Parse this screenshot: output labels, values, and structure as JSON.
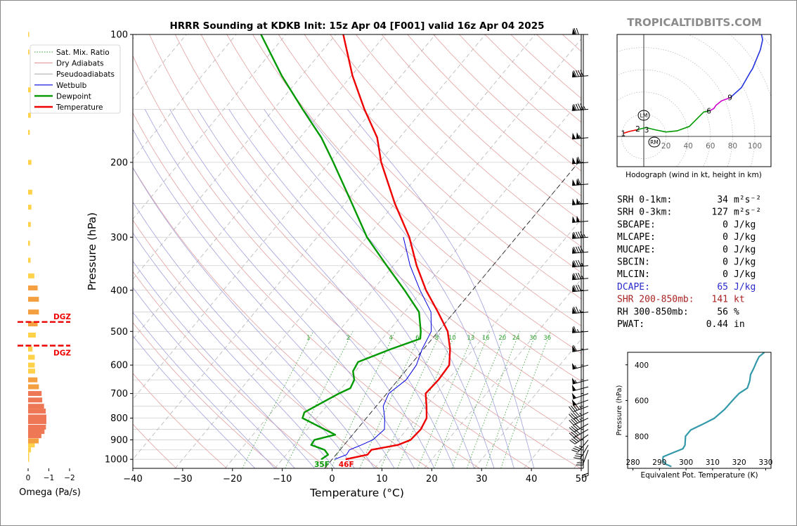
{
  "chart_data": {
    "type": "line",
    "title": "HRRR Sounding at KDKB Init: 15z Apr 04 [F001] valid 16z Apr 04 2025",
    "watermark": "TROPICALTIDBITS.COM",
    "skewt": {
      "xlabel": "Temperature (°C)",
      "ylabel": "Pressure (hPa)",
      "xlim": [
        -40,
        50
      ],
      "ylim": [
        1050,
        100
      ],
      "xticks": [
        "−40",
        "−30",
        "−20",
        "−10",
        "0",
        "10",
        "20",
        "30",
        "40",
        "50"
      ],
      "yticks": [
        "100",
        "200",
        "300",
        "400",
        "500",
        "600",
        "700",
        "800",
        "900",
        "1000"
      ],
      "legend_position": "upper-left",
      "legend": [
        {
          "label": "Sat. Mix. Ratio",
          "color": "#2ca02c",
          "style": "dotted"
        },
        {
          "label": "Dry Adiabats",
          "color": "#e08080",
          "style": "solid"
        },
        {
          "label": "Pseudoadiabats",
          "color": "#999999",
          "style": "solid"
        },
        {
          "label": "Wetbulb",
          "color": "#0000dd",
          "style": "solid"
        },
        {
          "label": "Dewpoint",
          "color": "#009900",
          "style": "solid"
        },
        {
          "label": "Temperature",
          "color": "#ee0000",
          "style": "solid"
        }
      ],
      "mixing_ratio_labels": [
        "1",
        "2",
        "4",
        "6",
        "8",
        "10",
        "13",
        "16",
        "20",
        "24",
        "30",
        "36"
      ],
      "surface_dewpoint_label": "35F",
      "surface_temp_label": "46F",
      "temperature": [
        [
          1000,
          2.7
        ],
        [
          975,
          6.3
        ],
        [
          950,
          6.3
        ],
        [
          925,
          10.8
        ],
        [
          900,
          12.5
        ],
        [
          850,
          12.8
        ],
        [
          800,
          12.1
        ],
        [
          750,
          10.1
        ],
        [
          700,
          7.8
        ],
        [
          650,
          8.1
        ],
        [
          600,
          7.8
        ],
        [
          550,
          5.3
        ],
        [
          500,
          1.9
        ],
        [
          450,
          -3.3
        ],
        [
          400,
          -9.3
        ],
        [
          350,
          -15.3
        ],
        [
          300,
          -21.5
        ],
        [
          250,
          -30
        ],
        [
          200,
          -39.6
        ],
        [
          175,
          -44.5
        ],
        [
          150,
          -51.8
        ],
        [
          125,
          -59.8
        ],
        [
          100,
          -68.5
        ]
      ],
      "dewpoint": [
        [
          1000,
          -2.2
        ],
        [
          975,
          -1.6
        ],
        [
          950,
          -3.1
        ],
        [
          925,
          -6.6
        ],
        [
          900,
          -6.8
        ],
        [
          875,
          -3.5
        ],
        [
          850,
          -6.5
        ],
        [
          800,
          -12.8
        ],
        [
          775,
          -13.4
        ],
        [
          700,
          -9.6
        ],
        [
          680,
          -8.2
        ],
        [
          650,
          -8.8
        ],
        [
          620,
          -10.5
        ],
        [
          590,
          -11
        ],
        [
          550,
          -6.5
        ],
        [
          520,
          -2.4
        ],
        [
          500,
          -3.5
        ],
        [
          450,
          -7.1
        ],
        [
          400,
          -13.6
        ],
        [
          350,
          -21.3
        ],
        [
          300,
          -30
        ],
        [
          250,
          -38.6
        ],
        [
          200,
          -49.2
        ],
        [
          175,
          -55.7
        ],
        [
          150,
          -64.2
        ],
        [
          125,
          -74
        ],
        [
          100,
          -85
        ]
      ],
      "wetbulb": [
        [
          1000,
          0.5
        ],
        [
          975,
          2.1
        ],
        [
          950,
          1.9
        ],
        [
          925,
          3.5
        ],
        [
          900,
          4.9
        ],
        [
          850,
          5.5
        ],
        [
          800,
          3.7
        ],
        [
          750,
          1.4
        ],
        [
          700,
          0.4
        ],
        [
          650,
          1.6
        ],
        [
          600,
          1.2
        ],
        [
          550,
          -0.3
        ],
        [
          500,
          -1.4
        ],
        [
          450,
          -4.7
        ],
        [
          400,
          -10.5
        ],
        [
          350,
          -16.6
        ],
        [
          300,
          -22.7
        ]
      ]
    },
    "omega": {
      "xlabel": "Omega (Pa/s)",
      "xticks": [
        "0",
        "−1",
        "−2"
      ],
      "dgz_label": "DGZ",
      "dgz_hpa": [
        475,
        540
      ],
      "values": [
        [
          1000,
          -0.02
        ],
        [
          975,
          -0.03
        ],
        [
          950,
          -0.14
        ],
        [
          925,
          -0.32
        ],
        [
          905,
          -0.51
        ],
        [
          880,
          -0.64
        ],
        [
          860,
          -0.79
        ],
        [
          840,
          -0.86
        ],
        [
          815,
          -0.88
        ],
        [
          795,
          -0.88
        ],
        [
          770,
          -0.85
        ],
        [
          750,
          -0.77
        ],
        [
          725,
          -0.68
        ],
        [
          700,
          -0.65
        ],
        [
          675,
          -0.52
        ],
        [
          650,
          -0.45
        ],
        [
          620,
          -0.34
        ],
        [
          600,
          -0.32
        ],
        [
          575,
          -0.32
        ],
        [
          550,
          -0.21
        ],
        [
          510,
          -0.37
        ],
        [
          480,
          -0.46
        ],
        [
          450,
          -0.52
        ],
        [
          420,
          -0.52
        ],
        [
          395,
          -0.46
        ],
        [
          370,
          -0.3
        ],
        [
          340,
          -0.12
        ],
        [
          310,
          -0.09
        ],
        [
          280,
          -0.13
        ],
        [
          255,
          -0.16
        ],
        [
          235,
          -0.2
        ],
        [
          200,
          -0.16
        ],
        [
          170,
          -0.08
        ],
        [
          155,
          -0.13
        ],
        [
          135,
          -0.13
        ],
        [
          110,
          -0.06
        ],
        [
          100,
          -0.04
        ]
      ]
    },
    "winds": [
      [
        1000,
        180,
        20
      ],
      [
        950,
        200,
        25
      ],
      [
        925,
        210,
        30
      ],
      [
        900,
        220,
        35
      ],
      [
        875,
        235,
        40
      ],
      [
        850,
        240,
        40
      ],
      [
        825,
        240,
        40
      ],
      [
        800,
        245,
        45
      ],
      [
        775,
        245,
        45
      ],
      [
        750,
        250,
        45
      ],
      [
        725,
        250,
        50
      ],
      [
        700,
        250,
        50
      ],
      [
        675,
        255,
        50
      ],
      [
        650,
        255,
        55
      ],
      [
        600,
        255,
        55
      ],
      [
        550,
        260,
        60
      ],
      [
        500,
        265,
        65
      ],
      [
        450,
        265,
        75
      ],
      [
        400,
        265,
        80
      ],
      [
        375,
        265,
        85
      ],
      [
        350,
        265,
        85
      ],
      [
        325,
        265,
        90
      ],
      [
        300,
        265,
        95
      ],
      [
        275,
        265,
        100
      ],
      [
        250,
        265,
        105
      ],
      [
        225,
        265,
        110
      ],
      [
        200,
        265,
        110
      ],
      [
        175,
        265,
        105
      ],
      [
        150,
        265,
        95
      ],
      [
        125,
        265,
        90
      ],
      [
        100,
        270,
        70
      ]
    ],
    "hodograph": {
      "caption": "Hodograph (wind in kt, height in km)",
      "ticks": [
        "20",
        "40",
        "60",
        "80",
        "100"
      ],
      "markers": [
        "1",
        "2",
        "3",
        "6",
        "9",
        "LM",
        "RM"
      ],
      "trace_colors": [
        "#ee0000",
        "#009900",
        "#0000dd",
        "#cc00cc",
        "#2233dd"
      ]
    },
    "indices": [
      {
        "label": "SRH 0-1km:",
        "value": "34",
        "unit": "m²s⁻²",
        "color": "#000000"
      },
      {
        "label": "SRH 0-3km:",
        "value": "127",
        "unit": "m²s⁻²",
        "color": "#000000"
      },
      {
        "label": "SBCAPE:",
        "value": "0",
        "unit": "J/kg",
        "color": "#000000"
      },
      {
        "label": "MLCAPE:",
        "value": "0",
        "unit": "J/kg",
        "color": "#000000"
      },
      {
        "label": "MUCAPE:",
        "value": "0",
        "unit": "J/kg",
        "color": "#000000"
      },
      {
        "label": "SBCIN:",
        "value": "0",
        "unit": "J/kg",
        "color": "#000000"
      },
      {
        "label": "MLCIN:",
        "value": "0",
        "unit": "J/kg",
        "color": "#000000"
      },
      {
        "label": "DCAPE:",
        "value": "65",
        "unit": "J/kg",
        "color": "#2a2acc"
      },
      {
        "label": "SHR 200-850mb:",
        "value": "141",
        "unit": "kt",
        "color": "#aa2222"
      },
      {
        "label": "RH 300-850mb:",
        "value": "56",
        "unit": "%",
        "color": "#000000"
      },
      {
        "label": "PWAT:",
        "value": "0.44",
        "unit": "in",
        "color": "#000000"
      }
    ],
    "theta_e": {
      "xlabel": "Equivalent Pot. Temperature (K)",
      "ylabel": "Pressure (hPa)",
      "xlim": [
        278,
        332
      ],
      "ylim": [
        980,
        330
      ],
      "xticks": [
        "280",
        "290",
        "300",
        "310",
        "320",
        "330"
      ],
      "yticks": [
        "400",
        "600",
        "800"
      ],
      "color": "#3399aa",
      "values": [
        [
          970,
          294.5
        ],
        [
          955,
          292.2
        ],
        [
          935,
          291.2
        ],
        [
          915,
          291.4
        ],
        [
          895,
          294.7
        ],
        [
          870,
          298.8
        ],
        [
          850,
          299.6
        ],
        [
          800,
          299.8
        ],
        [
          765,
          301.8
        ],
        [
          735,
          306
        ],
        [
          700,
          310.6
        ],
        [
          650,
          314.5
        ],
        [
          600,
          317.5
        ],
        [
          560,
          320
        ],
        [
          530,
          323.1
        ],
        [
          490,
          324
        ],
        [
          455,
          324.3
        ],
        [
          420,
          325.5
        ],
        [
          385,
          326.5
        ],
        [
          355,
          327.5
        ],
        [
          330,
          329.5
        ]
      ]
    }
  }
}
